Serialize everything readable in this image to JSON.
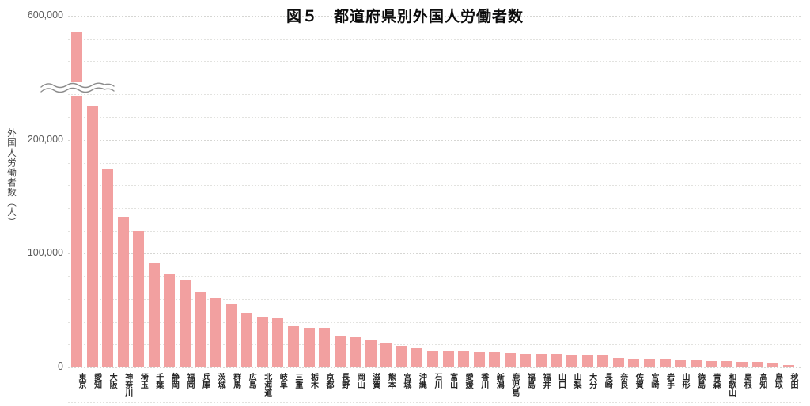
{
  "title": "図５　都道府県別外国人労働者数",
  "chart_data": {
    "type": "bar",
    "title": "図５　都道府県別外国人労働者数",
    "xlabel": "",
    "ylabel": "外国人労働者数（人）",
    "ylim": [
      0,
      600000
    ],
    "grid": true,
    "gridline_interval": 20000,
    "bar_color": "#f2a0a0",
    "axis_break": {
      "lower_max": 250000,
      "upper_min": 545000
    },
    "y_ticks": [
      {
        "value": 0,
        "label": "0"
      },
      {
        "value": 100000,
        "label": "100,000"
      },
      {
        "value": 200000,
        "label": "200,000"
      },
      {
        "value": 600000,
        "label": "600,000"
      }
    ],
    "minor_gridline_values": [
      20000,
      40000,
      60000,
      80000,
      120000,
      140000,
      160000,
      180000,
      220000,
      240000,
      260000,
      560000,
      580000
    ],
    "categories": [
      "東京",
      "愛知",
      "大阪",
      "神奈川",
      "埼玉",
      "千葉",
      "静岡",
      "福岡",
      "兵庫",
      "茨城",
      "群馬",
      "広島",
      "北海道",
      "岐阜",
      "三重",
      "栃木",
      "京都",
      "長野",
      "岡山",
      "滋賀",
      "熊本",
      "宮城",
      "沖縄",
      "石川",
      "富山",
      "愛媛",
      "香川",
      "新潟",
      "鹿児島",
      "福島",
      "福井",
      "山口",
      "山梨",
      "大分",
      "長崎",
      "奈良",
      "佐賀",
      "宮崎",
      "岩手",
      "山形",
      "徳島",
      "青森",
      "和歌山",
      "島根",
      "高知",
      "鳥取",
      "秋田"
    ],
    "values": [
      585791,
      229627,
      174699,
      132600,
      120000,
      92000,
      82000,
      76500,
      66000,
      61000,
      56000,
      48000,
      44000,
      43000,
      36500,
      35200,
      34200,
      28200,
      26200,
      24200,
      21000,
      18800,
      16500,
      14600,
      14100,
      13700,
      13400,
      13100,
      12400,
      12100,
      11900,
      11600,
      11400,
      11200,
      10300,
      8500,
      7800,
      7400,
      7100,
      6600,
      6000,
      5800,
      5400,
      5200,
      4500,
      3200,
      2400
    ]
  },
  "colors": {
    "bar": "#f2a0a0",
    "title_text": "#0d0d0d",
    "axis_text": "#595959",
    "category_text": "#262626",
    "gridline": "#e2e2df",
    "break_stroke": "#8c8c8c",
    "background": "#ffffff"
  }
}
